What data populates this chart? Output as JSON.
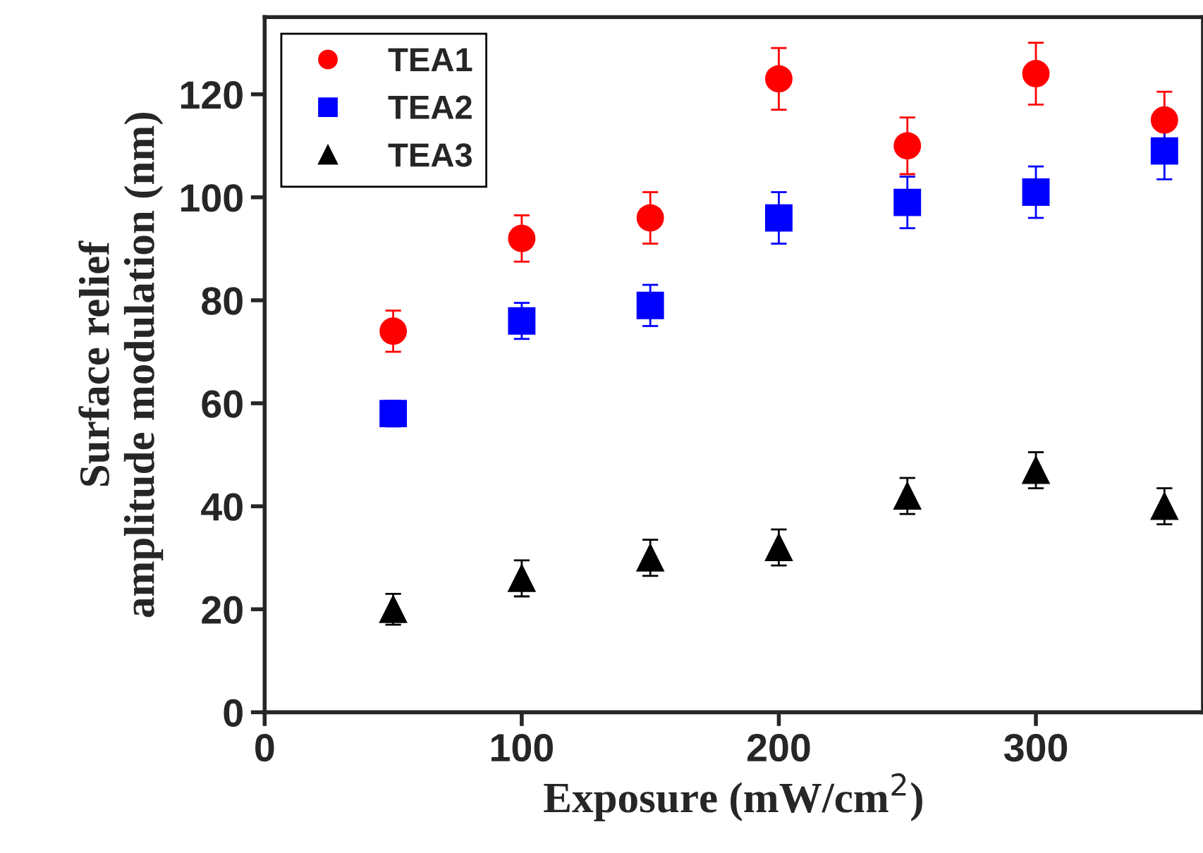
{
  "chart_data": {
    "type": "scatter",
    "xlabel": "Exposure (mW/cm$^{2}$)",
    "ylabel": "Surface relief\namplitude modulation (nm)",
    "x": [
      50,
      100,
      150,
      200,
      250,
      300,
      350
    ],
    "series": [
      {
        "name": "TEA1",
        "color": "#ff0000",
        "marker": "circle",
        "values": [
          74,
          92,
          96,
          123,
          110,
          124,
          115
        ],
        "errors": [
          4,
          4.5,
          5,
          6,
          5.5,
          6,
          5.5
        ]
      },
      {
        "name": "TEA2",
        "color": "#0000ff",
        "marker": "square",
        "values": [
          58,
          76,
          79,
          96,
          99,
          101,
          109
        ],
        "errors": [
          2.5,
          3.5,
          4,
          5,
          5,
          5,
          5.5
        ]
      },
      {
        "name": "TEA3",
        "color": "#000000",
        "marker": "triangle",
        "values": [
          20,
          26,
          30,
          32,
          42,
          47,
          40
        ],
        "errors": [
          3,
          3.5,
          3.5,
          3.5,
          3.5,
          3.5,
          3.5
        ]
      }
    ],
    "xlim": [
      0,
      365
    ],
    "ylim": [
      0,
      135
    ],
    "xticks": [
      0,
      100,
      200,
      300
    ],
    "yticks": [
      0,
      20,
      40,
      60,
      80,
      100,
      120
    ],
    "legend": "top left",
    "grid": false
  }
}
